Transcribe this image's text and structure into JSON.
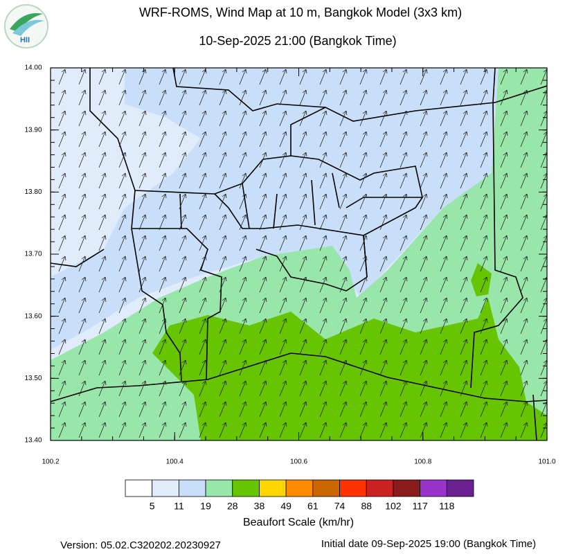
{
  "logo": "HII",
  "title": "WRF-ROMS, Wind Map at 10 m, Bangkok Model (3x3 km)",
  "subtitle": "10-Sep-2025 21:00 (Bangkok Time)",
  "map": {
    "xlim": [
      100.2,
      101.0
    ],
    "ylim": [
      13.4,
      14.0
    ],
    "xticks": [
      {
        "value": 100.2,
        "label": "100.2"
      },
      {
        "value": 100.4,
        "label": "100.4"
      },
      {
        "value": 100.6,
        "label": "100.6"
      },
      {
        "value": 100.8,
        "label": "100.8"
      },
      {
        "value": 101.0,
        "label": "101.0"
      }
    ],
    "yticks": [
      {
        "value": 13.4,
        "label": "13.40"
      },
      {
        "value": 13.5,
        "label": "13.50"
      },
      {
        "value": 13.6,
        "label": "13.60"
      },
      {
        "value": 13.7,
        "label": "13.70"
      },
      {
        "value": 13.8,
        "label": "13.80"
      },
      {
        "value": 13.9,
        "label": "13.90"
      },
      {
        "value": 14.0,
        "label": "14.00"
      }
    ]
  },
  "colorbar": {
    "title": "Beaufort Scale (km/hr)",
    "colors": [
      "#ffffff",
      "#e0ecfc",
      "#c8def9",
      "#99e6aa",
      "#66c400",
      "#ffd700",
      "#ff8c00",
      "#cc6600",
      "#ff3300",
      "#cc2222",
      "#8b1a1a",
      "#9933cc",
      "#6a2090"
    ],
    "bounds": [
      5,
      11,
      19,
      28,
      38,
      49,
      61,
      74,
      88,
      102,
      117,
      118
    ]
  },
  "footer": {
    "version": "Version: 05.02.C320202.20230927",
    "initial": "Initial date 09-Sep-2025 19:00 (Bangkok Time)"
  }
}
